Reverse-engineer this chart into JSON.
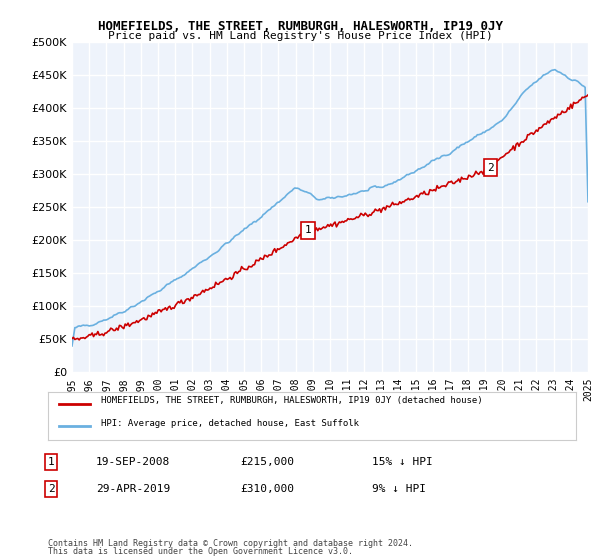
{
  "title": "HOMEFIELDS, THE STREET, RUMBURGH, HALESWORTH, IP19 0JY",
  "subtitle": "Price paid vs. HM Land Registry's House Price Index (HPI)",
  "ylabel": "",
  "background_color": "#ffffff",
  "plot_bg_color": "#eef3fb",
  "grid_color": "#ffffff",
  "ylim": [
    0,
    500000
  ],
  "yticks": [
    0,
    50000,
    100000,
    150000,
    200000,
    250000,
    300000,
    350000,
    400000,
    450000,
    500000
  ],
  "ytick_labels": [
    "£0",
    "£50K",
    "£100K",
    "£150K",
    "£200K",
    "£250K",
    "£300K",
    "£350K",
    "£400K",
    "£450K",
    "£500K"
  ],
  "sale1_date": "19-SEP-2008",
  "sale1_price": 215000,
  "sale1_pct": "15% ↓ HPI",
  "sale2_date": "29-APR-2019",
  "sale2_price": 310000,
  "sale2_pct": "9% ↓ HPI",
  "legend_label1": "HOMEFIELDS, THE STREET, RUMBURGH, HALESWORTH, IP19 0JY (detached house)",
  "legend_label2": "HPI: Average price, detached house, East Suffolk",
  "footer1": "Contains HM Land Registry data © Crown copyright and database right 2024.",
  "footer2": "This data is licensed under the Open Government Licence v3.0.",
  "hpi_color": "#6ab0e0",
  "price_color": "#cc0000",
  "marker_color": "#cc0000",
  "sale1_x": 2008.72,
  "sale2_x": 2019.33,
  "xmin": 1995,
  "xmax": 2025,
  "xticks": [
    1995,
    1996,
    1997,
    1998,
    1999,
    2000,
    2001,
    2002,
    2003,
    2004,
    2005,
    2006,
    2007,
    2008,
    2009,
    2010,
    2011,
    2012,
    2013,
    2014,
    2015,
    2016,
    2017,
    2018,
    2019,
    2020,
    2021,
    2022,
    2023,
    2024,
    2025
  ]
}
